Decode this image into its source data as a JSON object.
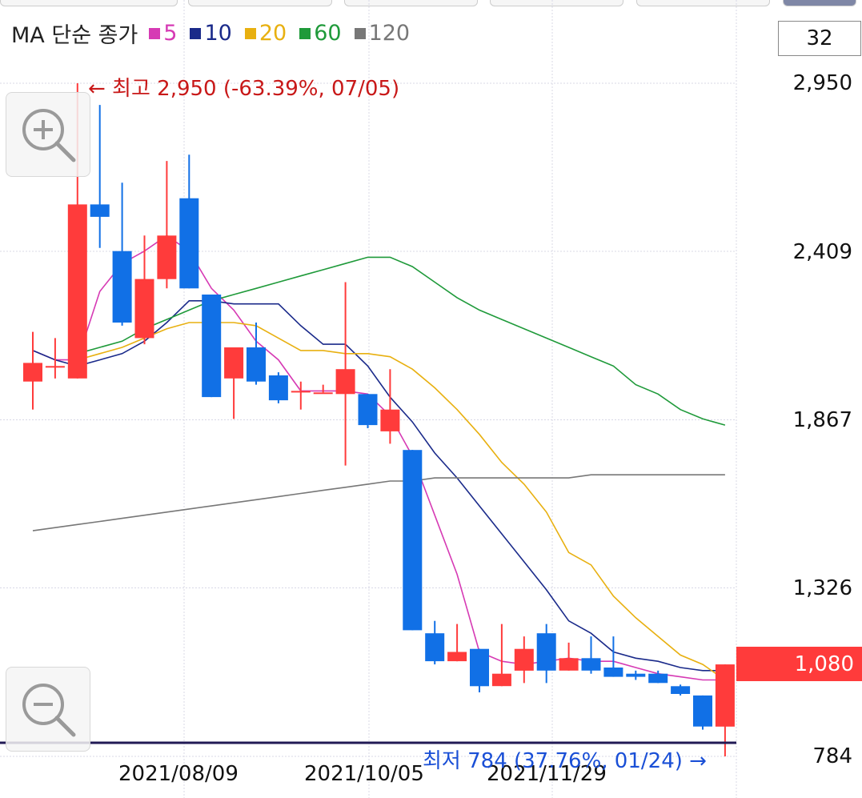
{
  "legend": {
    "title": "MA 단순 종가",
    "items": [
      {
        "label": "5",
        "color": "#d63ab4"
      },
      {
        "label": "10",
        "color": "#1a2a8a"
      },
      {
        "label": "20",
        "color": "#e8b010"
      },
      {
        "label": "60",
        "color": "#1f9a3a"
      },
      {
        "label": "120",
        "color": "#777777"
      }
    ]
  },
  "period_value": "32",
  "current_price_label": "1,080",
  "high_annotation": "← 최고 2,950 (-63.39%, 07/05)",
  "low_annotation": "최저 784 (37.76%, 01/24) →",
  "colors": {
    "up": "#ff3b3b",
    "down": "#1170e6",
    "grid": "#d8d8e6"
  },
  "chart_data": {
    "type": "candlestick",
    "title": "",
    "y_axis_ticks": [
      "2,950",
      "2,409",
      "1,867",
      "1,326",
      "784"
    ],
    "x_axis_ticks": [
      "2021/08/09",
      "2021/10/05",
      "2021/11/29"
    ],
    "ylim": [
      784,
      2950
    ],
    "grid": true,
    "candles": [
      {
        "o": 1990,
        "h": 2150,
        "l": 1900,
        "c": 2050
      },
      {
        "o": 2040,
        "h": 2130,
        "l": 2000,
        "c": 2040
      },
      {
        "o": 2000,
        "h": 2950,
        "l": 2000,
        "c": 2560
      },
      {
        "o": 2560,
        "h": 2880,
        "l": 2420,
        "c": 2520
      },
      {
        "o": 2410,
        "h": 2630,
        "l": 2170,
        "c": 2180
      },
      {
        "o": 2130,
        "h": 2460,
        "l": 2110,
        "c": 2320
      },
      {
        "o": 2320,
        "h": 2700,
        "l": 2290,
        "c": 2460
      },
      {
        "o": 2580,
        "h": 2720,
        "l": 2290,
        "c": 2290
      },
      {
        "o": 2270,
        "h": 2270,
        "l": 1940,
        "c": 1940
      },
      {
        "o": 2000,
        "h": 2100,
        "l": 1870,
        "c": 2100
      },
      {
        "o": 2100,
        "h": 2180,
        "l": 1980,
        "c": 1990
      },
      {
        "o": 2010,
        "h": 2020,
        "l": 1920,
        "c": 1930
      },
      {
        "o": 1960,
        "h": 1990,
        "l": 1900,
        "c": 1960
      },
      {
        "o": 1955,
        "h": 1980,
        "l": 1955,
        "c": 1955
      },
      {
        "o": 1950,
        "h": 2310,
        "l": 1720,
        "c": 2030
      },
      {
        "o": 1950,
        "h": 1950,
        "l": 1840,
        "c": 1850
      },
      {
        "o": 1830,
        "h": 2030,
        "l": 1790,
        "c": 1900
      },
      {
        "o": 1770,
        "h": 1770,
        "l": 1190,
        "c": 1190
      },
      {
        "o": 1180,
        "h": 1220,
        "l": 1080,
        "c": 1090
      },
      {
        "o": 1090,
        "h": 1210,
        "l": 1090,
        "c": 1120
      },
      {
        "o": 1130,
        "h": 1130,
        "l": 990,
        "c": 1010
      },
      {
        "o": 1010,
        "h": 1210,
        "l": 1010,
        "c": 1050
      },
      {
        "o": 1060,
        "h": 1170,
        "l": 1020,
        "c": 1130
      },
      {
        "o": 1180,
        "h": 1210,
        "l": 1020,
        "c": 1060
      },
      {
        "o": 1060,
        "h": 1150,
        "l": 1060,
        "c": 1100
      },
      {
        "o": 1100,
        "h": 1170,
        "l": 1050,
        "c": 1060
      },
      {
        "o": 1070,
        "h": 1170,
        "l": 1040,
        "c": 1040
      },
      {
        "o": 1050,
        "h": 1060,
        "l": 1030,
        "c": 1040
      },
      {
        "o": 1050,
        "h": 1060,
        "l": 1020,
        "c": 1020
      },
      {
        "o": 1010,
        "h": 1015,
        "l": 980,
        "c": 985
      },
      {
        "o": 980,
        "h": 980,
        "l": 870,
        "c": 880
      },
      {
        "o": 880,
        "h": 1080,
        "l": 784,
        "c": 1080
      }
    ],
    "ma_series": [
      {
        "name": "5",
        "values": [
          2090,
          2060,
          2060,
          2280,
          2370,
          2410,
          2460,
          2410,
          2290,
          2220,
          2120,
          2060,
          1960,
          1960,
          1960,
          1950,
          1880,
          1750,
          1560,
          1370,
          1120,
          1090,
          1080,
          1090,
          1100,
          1090,
          1090,
          1070,
          1050,
          1040,
          1030,
          1030
        ]
      },
      {
        "name": "10",
        "values": [
          2090,
          2060,
          2040,
          2060,
          2080,
          2120,
          2180,
          2250,
          2250,
          2240,
          2240,
          2240,
          2170,
          2110,
          2110,
          2040,
          1940,
          1860,
          1760,
          1680,
          1590,
          1500,
          1410,
          1320,
          1220,
          1180,
          1120,
          1100,
          1090,
          1070,
          1060,
          1060
        ]
      },
      {
        "name": "20",
        "values": [
          null,
          null,
          2060,
          2080,
          2100,
          2130,
          2160,
          2180,
          2180,
          2180,
          2170,
          2130,
          2090,
          2090,
          2080,
          2080,
          2070,
          2030,
          1970,
          1900,
          1820,
          1730,
          1660,
          1570,
          1440,
          1400,
          1300,
          1230,
          1170,
          1110,
          1080,
          1030
        ]
      },
      {
        "name": "60",
        "values": [
          null,
          null,
          2080,
          2100,
          2120,
          2160,
          2190,
          2220,
          2250,
          2270,
          2290,
          2310,
          2330,
          2350,
          2370,
          2390,
          2390,
          2360,
          2310,
          2260,
          2220,
          2190,
          2160,
          2130,
          2100,
          2070,
          2040,
          1980,
          1950,
          1900,
          1870,
          1850
        ]
      },
      {
        "name": "120",
        "values": [
          1510,
          1520,
          1530,
          1540,
          1550,
          1560,
          1570,
          1580,
          1590,
          1600,
          1610,
          1620,
          1630,
          1640,
          1650,
          1660,
          1670,
          1670,
          1680,
          1680,
          1680,
          1680,
          1680,
          1680,
          1680,
          1690,
          1690,
          1690,
          1690,
          1690,
          1690,
          1690
        ]
      }
    ]
  }
}
